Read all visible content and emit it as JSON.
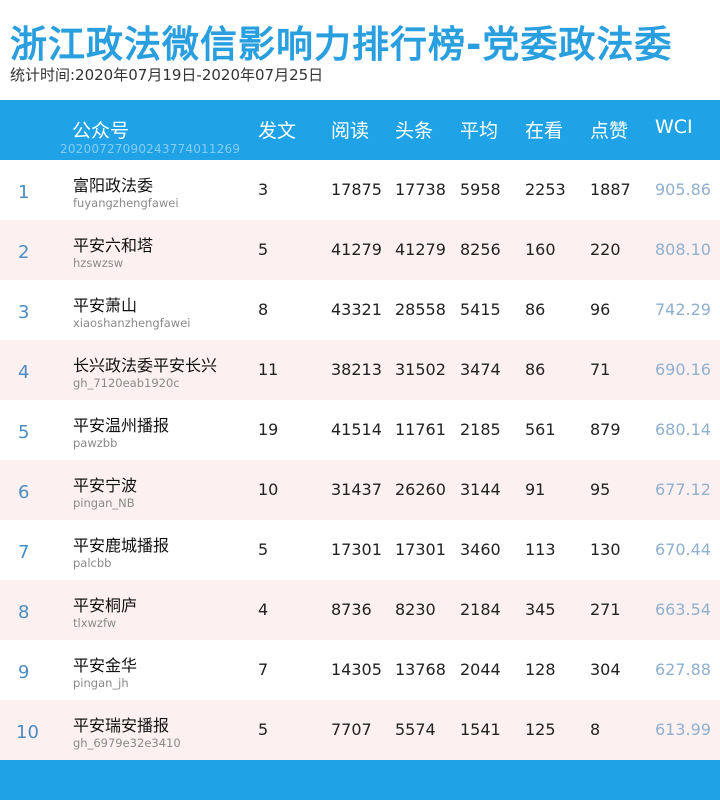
{
  "title": "浙江政法微信影响力排行榜-党委政法委",
  "subtitle": "统计时间:2020年07月19日-2020年07月25日",
  "header": {
    "account": "公众号",
    "posts": "发文",
    "reads": "阅读",
    "headline": "头条",
    "average": "平均",
    "watching": "在看",
    "likes": "点赞",
    "wci": "WCI",
    "id_watermark": "20200727090243774011269"
  },
  "rows": [
    {
      "rank": "1",
      "name": "富阳政法委",
      "account": "fuyangzhengfawei",
      "posts": "3",
      "reads": "17875",
      "headline": "17738",
      "average": "5958",
      "watching": "2253",
      "likes": "1887",
      "wci": "905.86"
    },
    {
      "rank": "2",
      "name": "平安六和塔",
      "account": "hzswzsw",
      "posts": "5",
      "reads": "41279",
      "headline": "41279",
      "average": "8256",
      "watching": "160",
      "likes": "220",
      "wci": "808.10"
    },
    {
      "rank": "3",
      "name": "平安萧山",
      "account": "xiaoshanzhengfawei",
      "posts": "8",
      "reads": "43321",
      "headline": "28558",
      "average": "5415",
      "watching": "86",
      "likes": "96",
      "wci": "742.29"
    },
    {
      "rank": "4",
      "name": "长兴政法委平安长兴",
      "account": "gh_7120eab1920c",
      "posts": "11",
      "reads": "38213",
      "headline": "31502",
      "average": "3474",
      "watching": "86",
      "likes": "71",
      "wci": "690.16"
    },
    {
      "rank": "5",
      "name": "平安温州播报",
      "account": "pawzbb",
      "posts": "19",
      "reads": "41514",
      "headline": "11761",
      "average": "2185",
      "watching": "561",
      "likes": "879",
      "wci": "680.14"
    },
    {
      "rank": "6",
      "name": "平安宁波",
      "account": "pingan_NB",
      "posts": "10",
      "reads": "31437",
      "headline": "26260",
      "average": "3144",
      "watching": "91",
      "likes": "95",
      "wci": "677.12"
    },
    {
      "rank": "7",
      "name": "平安鹿城播报",
      "account": "palcbb",
      "posts": "5",
      "reads": "17301",
      "headline": "17301",
      "average": "3460",
      "watching": "113",
      "likes": "130",
      "wci": "670.44"
    },
    {
      "rank": "8",
      "name": "平安桐庐",
      "account": "tlxwzfw",
      "posts": "4",
      "reads": "8736",
      "headline": "8230",
      "average": "2184",
      "watching": "345",
      "likes": "271",
      "wci": "663.54"
    },
    {
      "rank": "9",
      "name": "平安金华",
      "account": "pingan_jh",
      "posts": "7",
      "reads": "14305",
      "headline": "13768",
      "average": "2044",
      "watching": "128",
      "likes": "304",
      "wci": "627.88"
    },
    {
      "rank": "10",
      "name": "平安瑞安播报",
      "account": "gh_6979e32e3410",
      "posts": "5",
      "reads": "7707",
      "headline": "5574",
      "average": "1541",
      "watching": "125",
      "likes": "8",
      "wci": "613.99"
    }
  ]
}
